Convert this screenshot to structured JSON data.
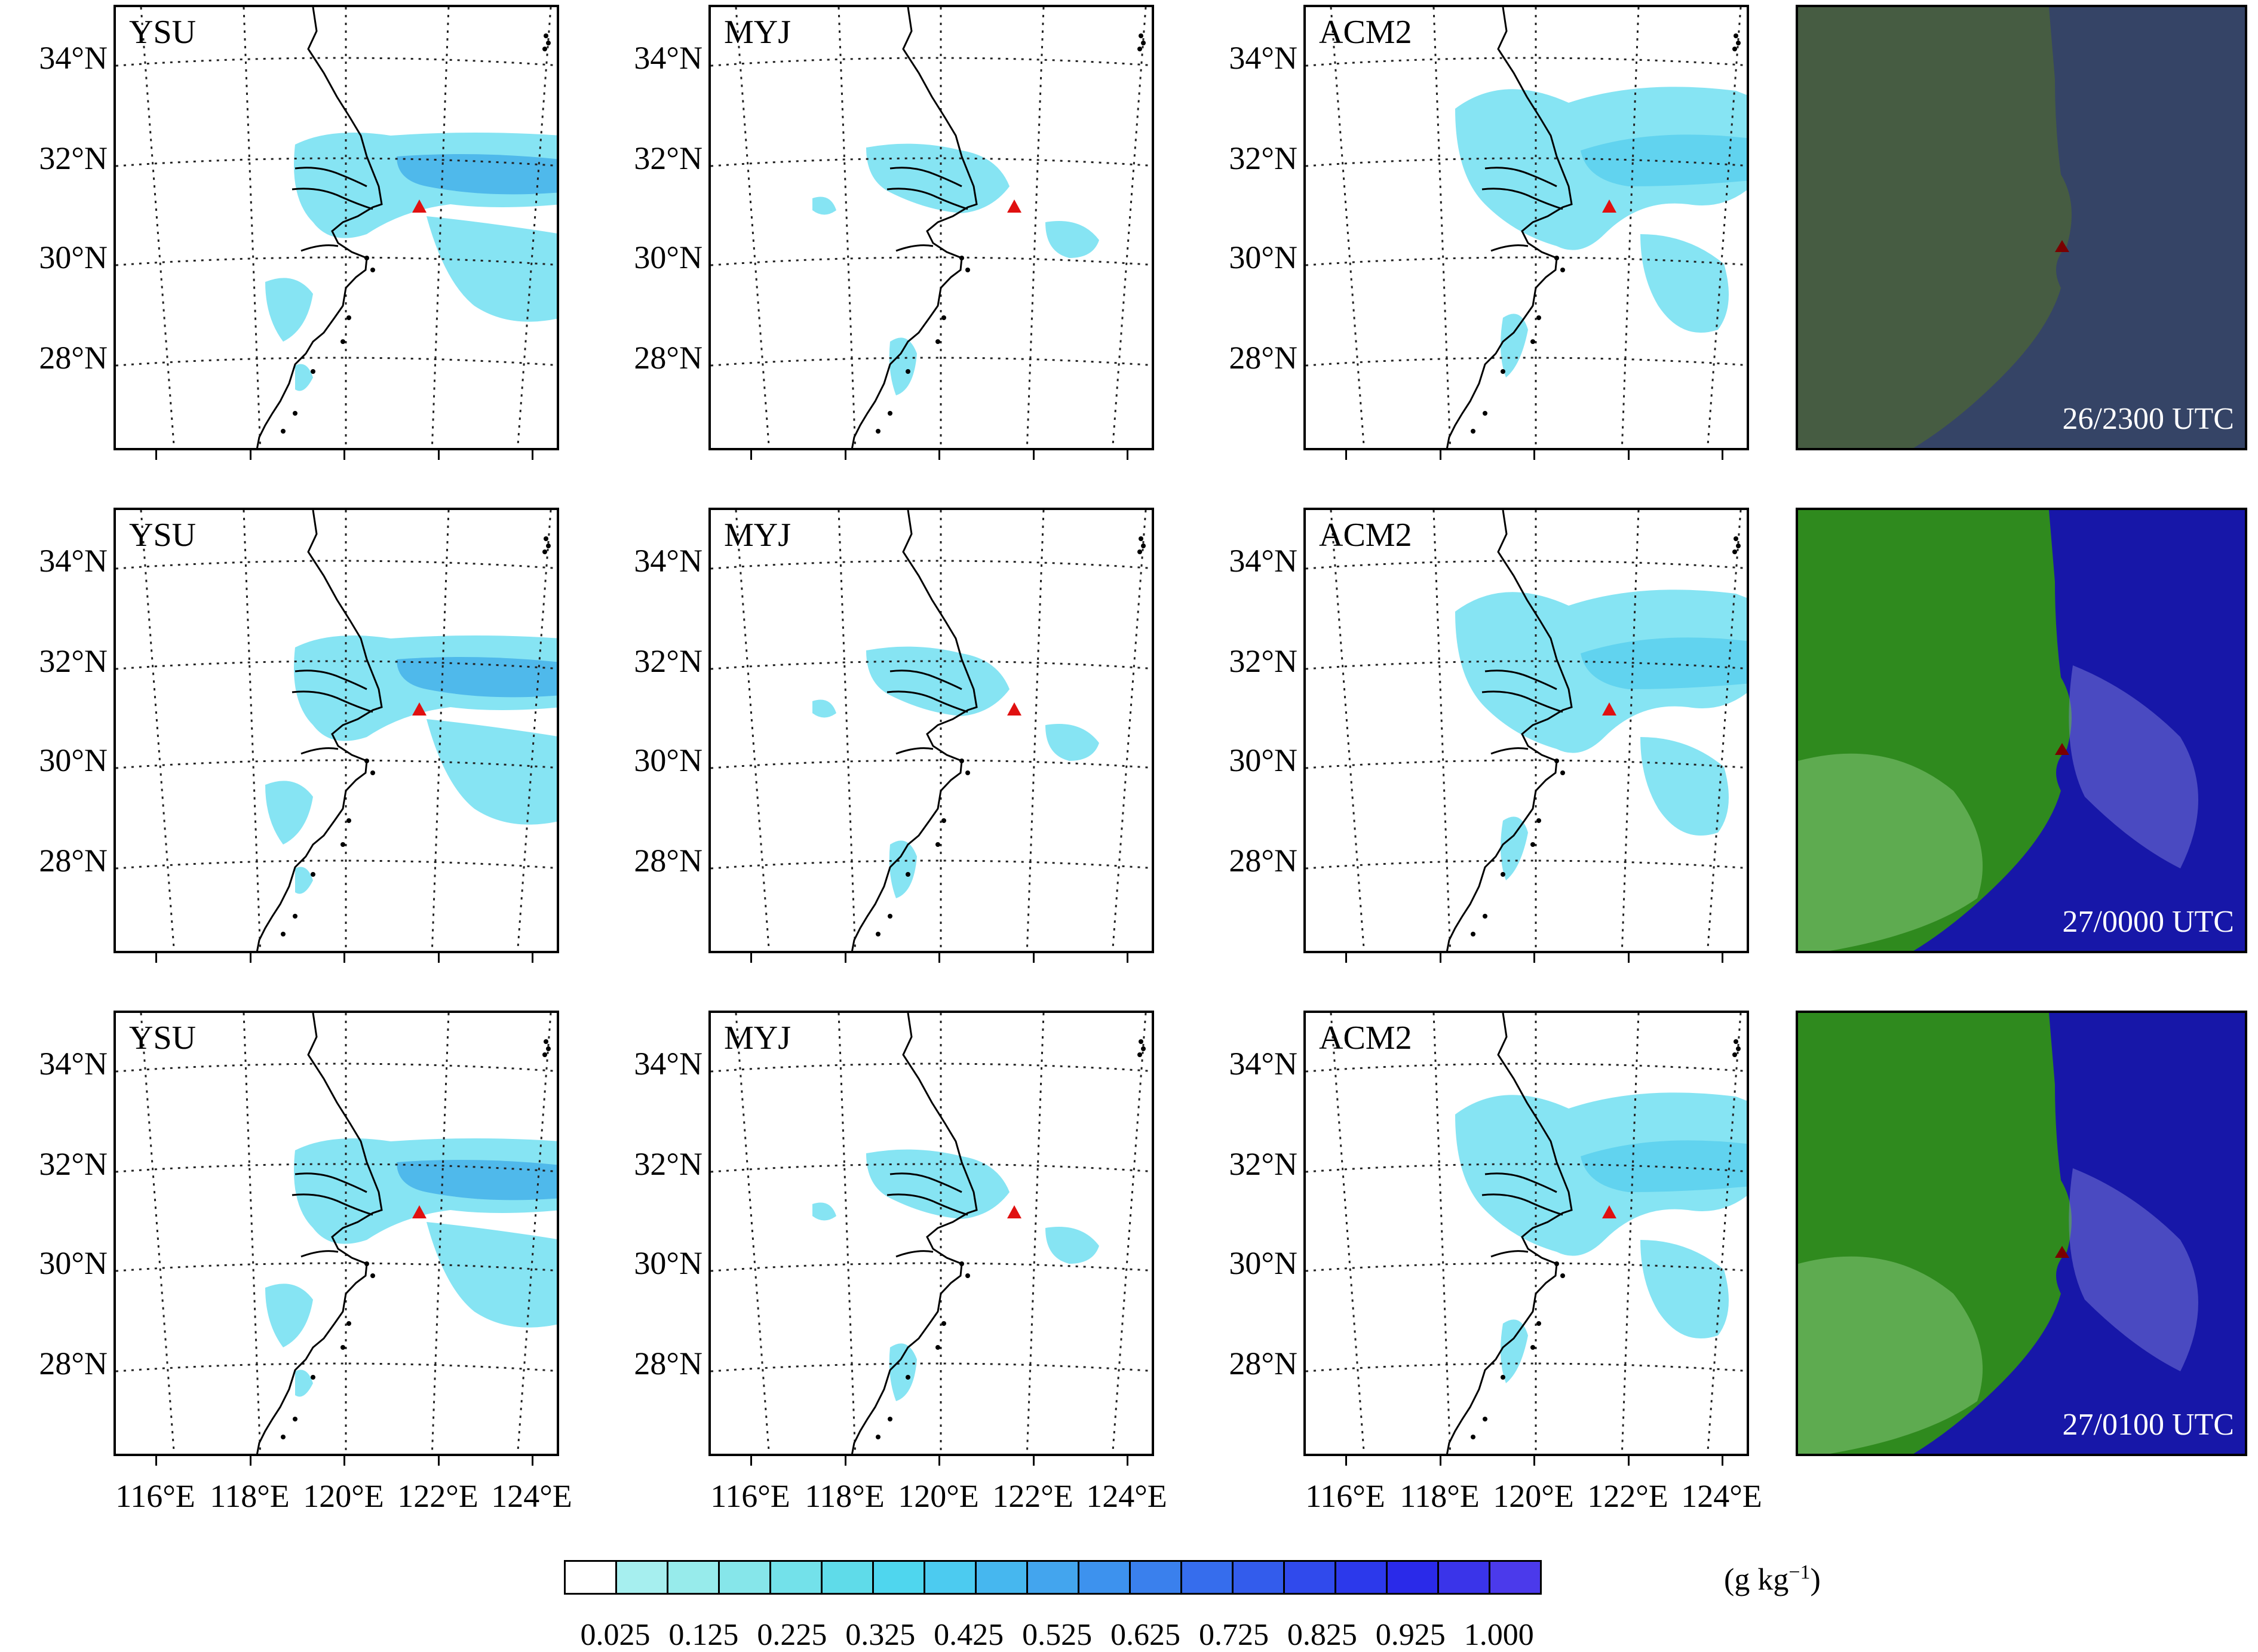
{
  "schemes": [
    "YSU",
    "MYJ",
    "ACM2"
  ],
  "times": [
    "26/2300 UTC",
    "27/0000 UTC",
    "27/0100 UTC"
  ],
  "lat_labels": [
    "34°N",
    "32°N",
    "30°N",
    "28°N"
  ],
  "lon_labels": [
    "116°E",
    "118°E",
    "120°E",
    "122°E",
    "124°E"
  ],
  "colorbar": {
    "unit_prefix": "(g kg",
    "unit_sup": "−1",
    "unit_suffix": ")",
    "labels": [
      "0.025",
      "0.125",
      "0.225",
      "0.325",
      "0.425",
      "0.525",
      "0.625",
      "0.725",
      "0.825",
      "0.925",
      "1.000"
    ],
    "colors": [
      "#ffffff",
      "#a6efef",
      "#97ebeb",
      "#86e6ea",
      "#73e1ea",
      "#5fdbe9",
      "#4fd6ee",
      "#4ccbf0",
      "#46b7ef",
      "#43a5ee",
      "#3d92ee",
      "#3a80ed",
      "#366ded",
      "#335cec",
      "#304aec",
      "#2c39eb",
      "#2a2ae9",
      "#3a34e9",
      "#4b3aeb"
    ]
  },
  "colors": {
    "cloud_light": "#7fe3f2",
    "cloud_mid": "#5fd2ee",
    "cloud_dark": "#4cb6ea",
    "marker": "#e01010",
    "sat_marker": "#7a0000",
    "sat_land": "#2f8a1e",
    "sat_sea": "#1717a8"
  }
}
